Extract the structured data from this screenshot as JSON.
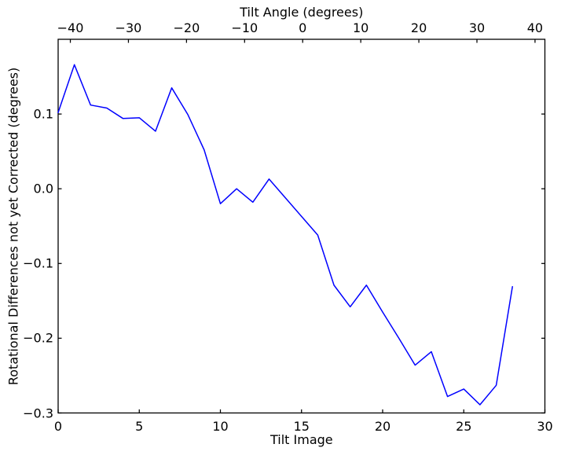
{
  "figure": {
    "background": "#ffffff",
    "frame_color": "#000000"
  },
  "chart_data": {
    "type": "line",
    "title": "Tilt Angle (degrees)",
    "xlabel": "Tilt Image",
    "ylabel": "Rotational Differences not yet Corrected (degrees)",
    "xlim": [
      0,
      30
    ],
    "ylim": [
      -0.3,
      0.2
    ],
    "grid": false,
    "legend": null,
    "line_color": "#0000ff",
    "x_tick_values": [
      0,
      5,
      10,
      15,
      20,
      25,
      30
    ],
    "x_tick_labels": [
      "0",
      "5",
      "10",
      "15",
      "20",
      "25",
      "30"
    ],
    "y_tick_values": [
      0.1,
      0.0,
      -0.1,
      -0.2,
      -0.3
    ],
    "y_tick_labels": [
      "0.1",
      "0.0",
      "−0.1",
      "−0.2",
      "−0.3"
    ],
    "top_axis": {
      "label": "Tilt Angle (degrees)",
      "lim": [
        -42.1,
        41.7
      ],
      "tick_values": [
        -40,
        -30,
        -20,
        -10,
        0,
        10,
        20,
        30,
        40
      ],
      "tick_labels": [
        "−40",
        "−30",
        "−20",
        "−10",
        "0",
        "10",
        "20",
        "30",
        "40"
      ]
    },
    "series": [
      {
        "name": "rotational_difference",
        "x": [
          0,
          1,
          2,
          3,
          4,
          5,
          6,
          7,
          8,
          9,
          10,
          11,
          12,
          13,
          14,
          15,
          16,
          17,
          18,
          19,
          20,
          21,
          22,
          23,
          24,
          25,
          26,
          27,
          28
        ],
        "y": [
          0.102,
          0.166,
          0.112,
          0.108,
          0.094,
          0.095,
          0.077,
          0.135,
          0.099,
          0.052,
          -0.02,
          0.0,
          -0.018,
          0.013,
          -0.012,
          -0.037,
          -0.062,
          -0.129,
          -0.158,
          -0.129,
          -0.165,
          -0.2,
          -0.236,
          -0.218,
          -0.278,
          -0.268,
          -0.289,
          -0.263,
          -0.131
        ]
      }
    ]
  }
}
